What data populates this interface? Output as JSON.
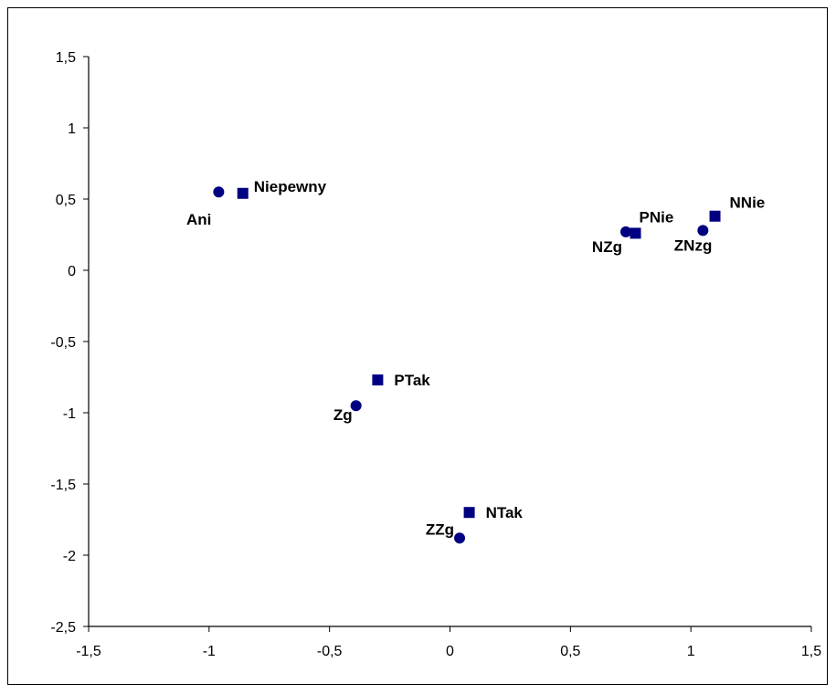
{
  "chart_data": {
    "type": "scatter",
    "xlim": [
      -1.5,
      1.5
    ],
    "ylim": [
      -2.5,
      1.5
    ],
    "x_ticks": [
      -1.5,
      -1,
      -0.5,
      0,
      0.5,
      1,
      1.5
    ],
    "y_ticks": [
      1.5,
      1,
      0.5,
      0,
      -0.5,
      -1,
      -1.5,
      -2,
      -2.5
    ],
    "x_tick_labels": [
      "-1,5",
      "-1",
      "-0,5",
      "0",
      "0,5",
      "1",
      "1,5"
    ],
    "y_tick_labels": [
      "1,5",
      "1",
      "0,5",
      "0",
      "-0,5",
      "-1",
      "-1,5",
      "-2",
      "-2,5"
    ],
    "grid": false,
    "legend": "none",
    "color": "#000080",
    "series": [
      {
        "marker": "circle",
        "points": [
          {
            "label": "Ani",
            "x": -0.96,
            "y": 0.55
          },
          {
            "label": "NZg",
            "x": 0.73,
            "y": 0.27
          },
          {
            "label": "ZNzg",
            "x": 1.05,
            "y": 0.28
          },
          {
            "label": "Zg",
            "x": -0.39,
            "y": -0.95
          },
          {
            "label": "ZZg",
            "x": 0.04,
            "y": -1.88
          }
        ]
      },
      {
        "marker": "square",
        "points": [
          {
            "label": "Niepewny",
            "x": -0.86,
            "y": 0.54
          },
          {
            "label": "PNie",
            "x": 0.77,
            "y": 0.26
          },
          {
            "label": "NNie",
            "x": 1.1,
            "y": 0.38
          },
          {
            "label": "PTak",
            "x": -0.3,
            "y": -0.77
          },
          {
            "label": "NTak",
            "x": 0.08,
            "y": -1.7
          }
        ]
      }
    ]
  }
}
